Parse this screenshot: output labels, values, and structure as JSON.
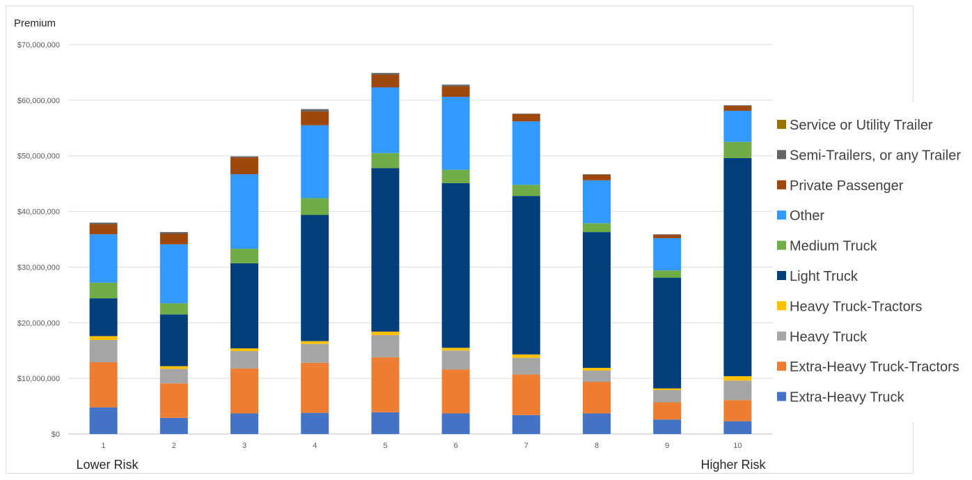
{
  "chart_data": {
    "type": "bar",
    "stacked": true,
    "ylabel": "Premium",
    "xlabel": "",
    "ylim": [
      0,
      70000000
    ],
    "yticks": [
      0,
      10000000,
      20000000,
      30000000,
      40000000,
      50000000,
      60000000,
      70000000
    ],
    "ytick_labels": [
      "$0",
      "$10,000,000",
      "$20,000,000",
      "$30,000,000",
      "$40,000,000",
      "$50,000,000",
      "$60,000,000",
      "$70,000,000"
    ],
    "categories": [
      "1",
      "2",
      "3",
      "4",
      "5",
      "6",
      "7",
      "8",
      "9",
      "10"
    ],
    "x_left_label": "Lower Risk",
    "x_right_label": "Higher Risk",
    "grid": "horizontal",
    "legend_position": "right",
    "series": [
      {
        "name": "Extra-Heavy Truck",
        "color": "#4472C4",
        "values": [
          4800000,
          2900000,
          3700000,
          3800000,
          3900000,
          3700000,
          3400000,
          3700000,
          2600000,
          2300000
        ]
      },
      {
        "name": "Extra-Heavy Truck-Tractors",
        "color": "#ED7D31",
        "values": [
          8100000,
          6200000,
          8100000,
          9000000,
          9900000,
          7900000,
          7300000,
          5700000,
          3100000,
          3800000
        ]
      },
      {
        "name": "Heavy Truck",
        "color": "#A5A5A5",
        "values": [
          4000000,
          2600000,
          3100000,
          3400000,
          4000000,
          3400000,
          3000000,
          2000000,
          2200000,
          3500000
        ]
      },
      {
        "name": "Heavy Truck-Tractors",
        "color": "#FFC000",
        "values": [
          700000,
          500000,
          500000,
          500000,
          600000,
          500000,
          600000,
          500000,
          300000,
          800000
        ]
      },
      {
        "name": "Light Truck",
        "color": "#003E7C",
        "values": [
          6800000,
          9300000,
          15300000,
          22700000,
          29400000,
          29600000,
          28500000,
          24400000,
          19900000,
          39200000
        ]
      },
      {
        "name": "Medium Truck",
        "color": "#70AD47",
        "values": [
          2800000,
          2000000,
          2600000,
          3000000,
          2700000,
          2400000,
          2000000,
          1600000,
          1300000,
          2900000
        ]
      },
      {
        "name": "Other",
        "color": "#3399FF",
        "values": [
          8700000,
          10600000,
          13400000,
          13100000,
          11800000,
          13100000,
          11400000,
          7700000,
          5800000,
          5600000
        ]
      },
      {
        "name": "Private Passenger",
        "color": "#9E480E",
        "values": [
          1800000,
          1900000,
          3000000,
          2500000,
          2300000,
          1900000,
          1300000,
          1000000,
          600000,
          900000
        ]
      },
      {
        "name": "Semi-Trailers, or any Trailer",
        "color": "#636363",
        "values": [
          300000,
          300000,
          200000,
          400000,
          300000,
          300000,
          100000,
          100000,
          100000,
          100000
        ]
      },
      {
        "name": "Service or Utility Trailer",
        "color": "#997300",
        "values": [
          0,
          0,
          0,
          0,
          0,
          0,
          0,
          0,
          0,
          0
        ]
      }
    ]
  }
}
